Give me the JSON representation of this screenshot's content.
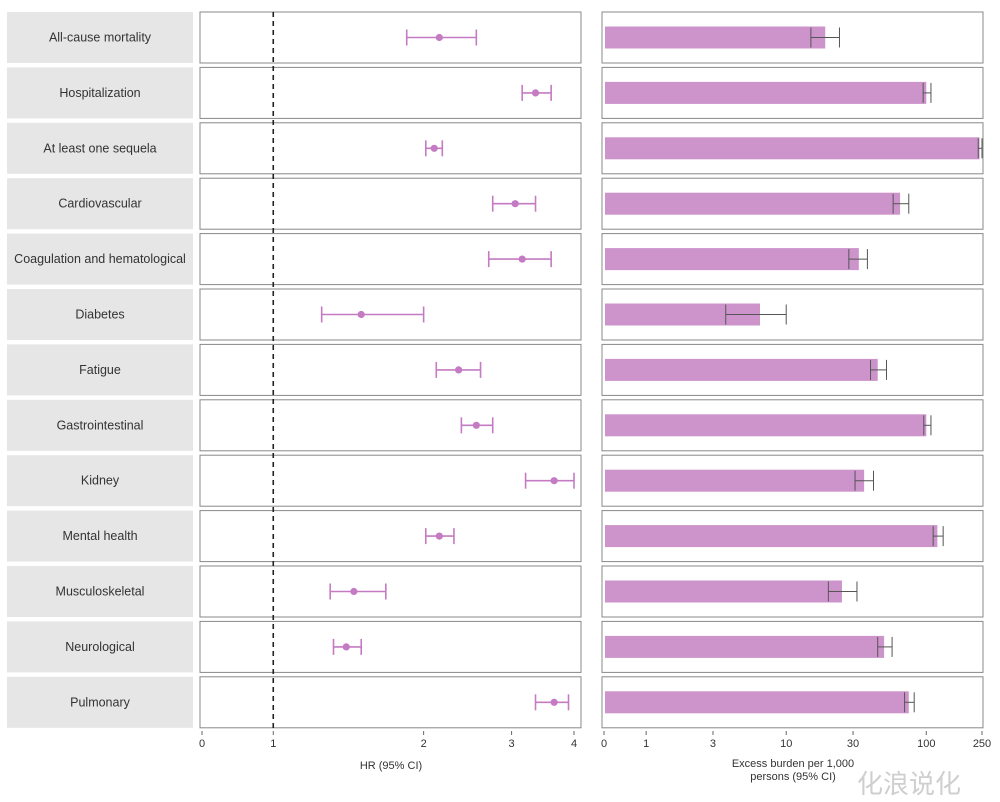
{
  "chart_data": [
    {
      "type": "forest",
      "xlabel": "HR (95% CI)",
      "x_scale": "log",
      "xlim": [
        0.72,
        4.0
      ],
      "reference_line": 1,
      "ticks": [
        "0",
        "1",
        "2",
        "3",
        "4"
      ],
      "categories": [
        "All-cause mortality",
        "Hospitalization",
        "At least one sequela",
        "Cardiovascular",
        "Coagulation and hematological",
        "Diabetes",
        "Fatigue",
        "Gastrointestinal",
        "Kidney",
        "Mental health",
        "Musculoskeletal",
        "Neurological",
        "Pulmonary"
      ],
      "estimates": [
        2.15,
        3.35,
        2.1,
        3.05,
        3.15,
        1.5,
        2.35,
        2.55,
        3.65,
        2.15,
        1.45,
        1.4,
        3.65
      ],
      "ci_low": [
        1.85,
        3.15,
        2.02,
        2.75,
        2.7,
        1.25,
        2.12,
        2.38,
        3.2,
        2.02,
        1.3,
        1.32,
        3.35
      ],
      "ci_high": [
        2.55,
        3.6,
        2.18,
        3.35,
        3.6,
        2.0,
        2.6,
        2.75,
        4.0,
        2.3,
        1.68,
        1.5,
        3.9
      ]
    },
    {
      "type": "bar",
      "xlabel_line1": "Excess burden per 1,000",
      "xlabel_line2": "persons (95% CI)",
      "x_scale": "log",
      "xlim": [
        0.5,
        250
      ],
      "ticks": [
        "0",
        "1",
        "3",
        "10",
        "30",
        "100",
        "250"
      ],
      "categories": [
        "All-cause mortality",
        "Hospitalization",
        "At least one sequela",
        "Cardiovascular",
        "Coagulation and hematological",
        "Diabetes",
        "Fatigue",
        "Gastrointestinal",
        "Kidney",
        "Mental health",
        "Musculoskeletal",
        "Neurological",
        "Pulmonary"
      ],
      "values": [
        19,
        100,
        240,
        65,
        33,
        6.5,
        45,
        100,
        36,
        120,
        25,
        50,
        75
      ],
      "ci_low": [
        15,
        95,
        235,
        58,
        28,
        3.7,
        40,
        96,
        31,
        112,
        20,
        45,
        70
      ],
      "ci_high": [
        24,
        108,
        250,
        75,
        38,
        10,
        52,
        108,
        42,
        132,
        32,
        57,
        82
      ]
    }
  ],
  "colors": {
    "marker": "#c47bc3",
    "bar": "#cc94cb",
    "label_bg": "#e6e6e6",
    "ci_bar": "#555555"
  },
  "watermark": "化浪说化"
}
